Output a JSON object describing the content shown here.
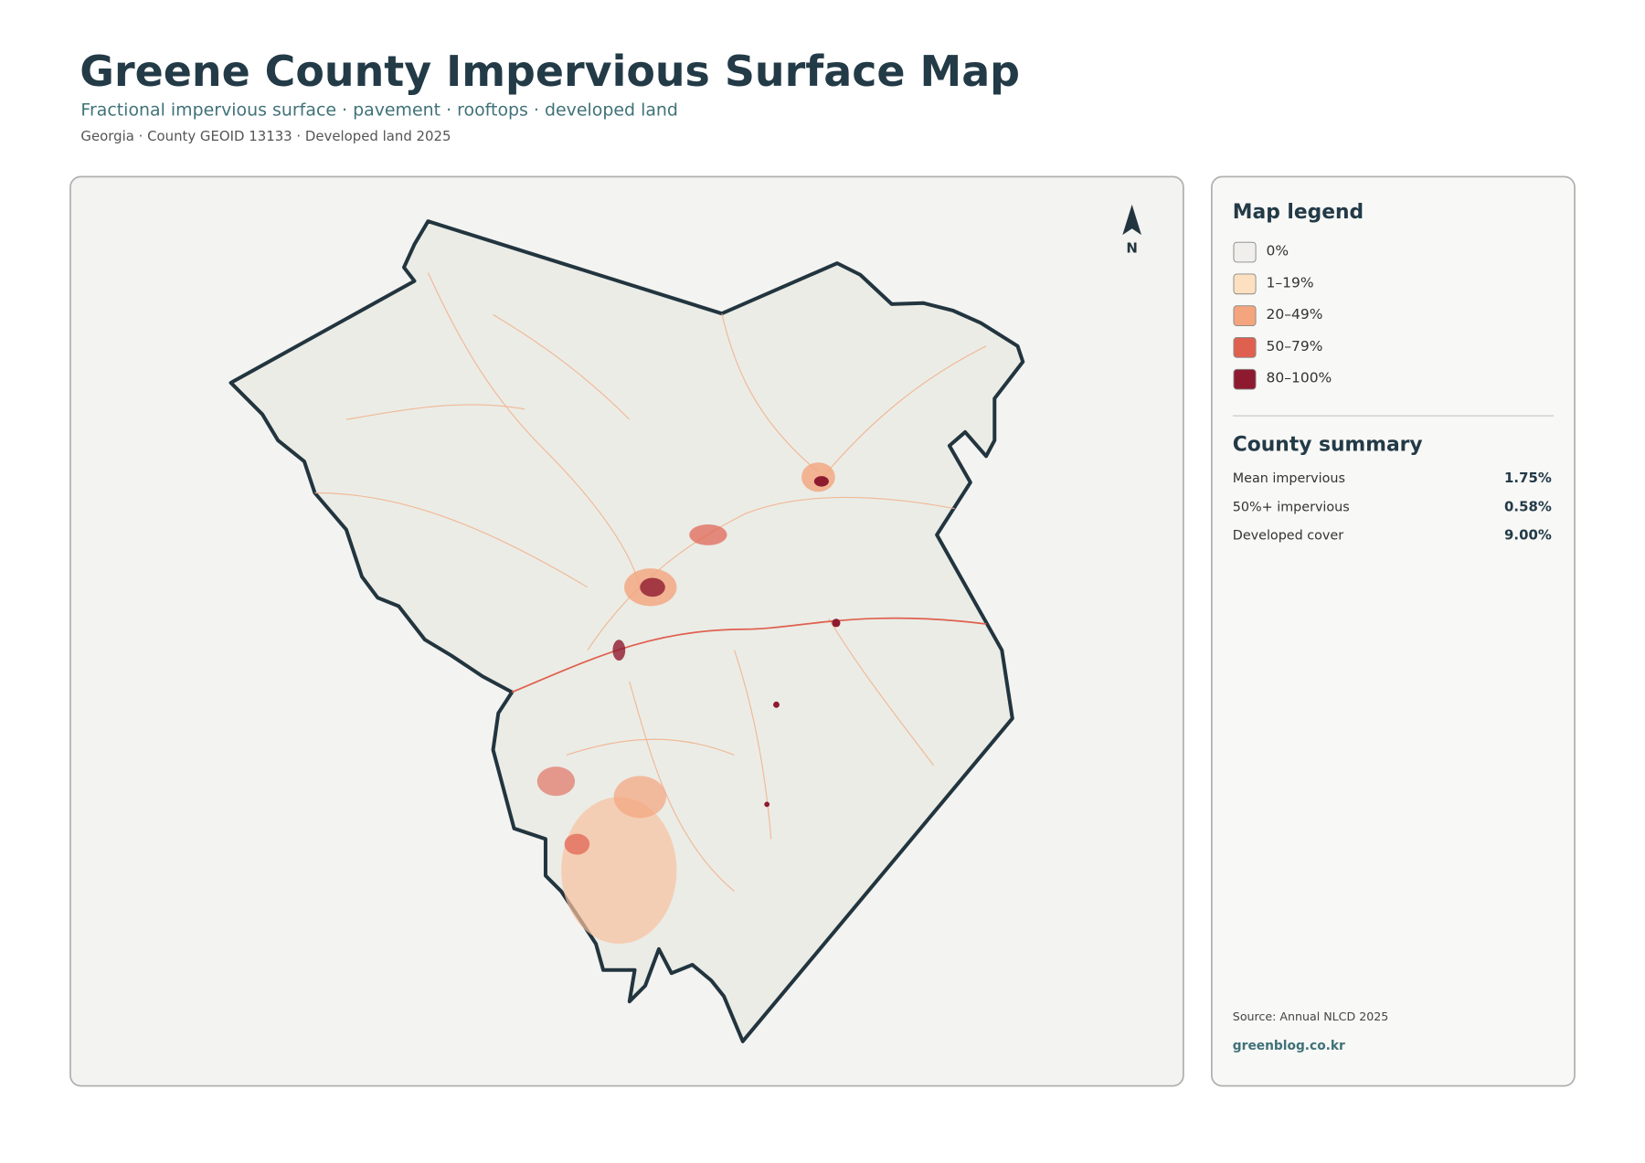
{
  "header": {
    "title": "Greene County Impervious Surface Map",
    "subtitle": "Fractional impervious surface · pavement · rooftops · developed land",
    "meta": "Georgia · County GEOID 13133 · Developed land 2025"
  },
  "map": {
    "north_label": "N"
  },
  "legend": {
    "title": "Map legend",
    "items": [
      {
        "label": "0%",
        "color": "#f0efeb"
      },
      {
        "label": "1–19%",
        "color": "#fde0c0"
      },
      {
        "label": "20–49%",
        "color": "#f4a57e"
      },
      {
        "label": "50–79%",
        "color": "#e0604f"
      },
      {
        "label": "80–100%",
        "color": "#8e1a2f"
      }
    ]
  },
  "summary": {
    "title": "County summary",
    "rows": [
      {
        "label": "Mean impervious",
        "value": "1.75%"
      },
      {
        "label": "50%+ impervious",
        "value": "0.58%"
      },
      {
        "label": "Developed cover",
        "value": "9.00%"
      }
    ]
  },
  "footer": {
    "source": "Source: Annual NLCD 2025",
    "link": "greenblog.co.kr"
  }
}
